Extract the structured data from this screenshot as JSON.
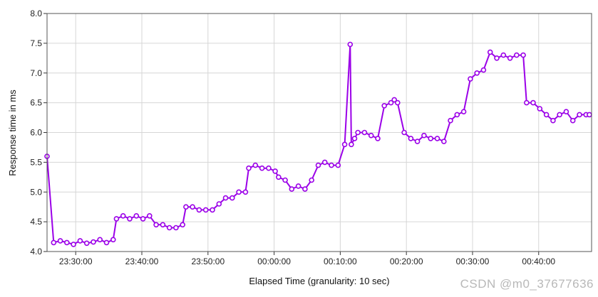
{
  "chart_data": {
    "type": "line",
    "title": "",
    "xlabel": "Elapsed Time (granularity: 10 sec)",
    "ylabel": "Response time in ms",
    "ylim": [
      4.0,
      8.0
    ],
    "yticks": [
      "4.0",
      "4.5",
      "5.0",
      "5.5",
      "6.0",
      "6.5",
      "7.0",
      "7.5",
      "8.0"
    ],
    "xlim": [
      "23:25:40",
      "00:48:00"
    ],
    "xticks": [
      "23:30:00",
      "23:40:00",
      "23:50:00",
      "00:00:00",
      "00:10:00",
      "00:20:00",
      "00:30:00",
      "00:40:00"
    ],
    "grid": true,
    "line_color": "#9b00e8",
    "series": [
      {
        "x": [
          "23:25:40",
          "23:26:40",
          "23:27:40",
          "23:28:40",
          "23:29:40",
          "23:30:40",
          "23:31:40",
          "23:32:40",
          "23:33:40",
          "23:34:40",
          "23:35:40",
          "23:36:10",
          "23:37:10",
          "23:38:10",
          "23:39:10",
          "23:40:10",
          "23:41:10",
          "23:42:10",
          "23:43:10",
          "23:44:10",
          "23:45:10",
          "23:46:10",
          "23:46:40",
          "23:47:40",
          "23:48:40",
          "23:49:40",
          "23:50:40",
          "23:51:40",
          "23:52:40",
          "23:53:40",
          "23:54:40",
          "23:55:40",
          "23:56:10",
          "23:57:10",
          "23:58:10",
          "23:59:10",
          "00:00:10",
          "00:00:40",
          "00:01:40",
          "00:02:40",
          "00:03:40",
          "00:04:40",
          "00:05:40",
          "00:06:40",
          "00:07:40",
          "00:08:40",
          "00:09:40",
          "00:10:40",
          "00:11:30",
          "00:11:40",
          "00:12:10",
          "00:12:40",
          "00:13:40",
          "00:14:40",
          "00:15:40",
          "00:16:40",
          "00:17:40",
          "00:18:10",
          "00:18:40",
          "00:19:40",
          "00:20:40",
          "00:21:40",
          "00:22:40",
          "00:23:40",
          "00:24:40",
          "00:25:40",
          "00:26:40",
          "00:27:40",
          "00:28:40",
          "00:29:40",
          "00:30:40",
          "00:31:40",
          "00:32:40",
          "00:33:40",
          "00:34:40",
          "00:35:40",
          "00:36:40",
          "00:37:40",
          "00:38:10",
          "00:39:10",
          "00:40:10",
          "00:41:10",
          "00:42:10",
          "00:43:10",
          "00:44:10",
          "00:45:10",
          "00:46:10",
          "00:47:10",
          "00:47:40"
        ],
        "y": [
          5.6,
          4.15,
          4.18,
          4.15,
          4.12,
          4.18,
          4.14,
          4.16,
          4.2,
          4.15,
          4.2,
          4.55,
          4.6,
          4.55,
          4.6,
          4.55,
          4.6,
          4.45,
          4.45,
          4.4,
          4.4,
          4.45,
          4.75,
          4.75,
          4.7,
          4.7,
          4.7,
          4.8,
          4.9,
          4.9,
          5.0,
          5.0,
          5.4,
          5.45,
          5.4,
          5.4,
          5.35,
          5.25,
          5.2,
          5.05,
          5.1,
          5.05,
          5.2,
          5.45,
          5.5,
          5.45,
          5.45,
          5.8,
          7.48,
          5.8,
          5.9,
          6.0,
          6.0,
          5.95,
          5.9,
          6.45,
          6.5,
          6.55,
          6.5,
          6.0,
          5.9,
          5.85,
          5.95,
          5.9,
          5.9,
          5.85,
          6.2,
          6.3,
          6.35,
          6.9,
          7.0,
          7.05,
          7.35,
          7.25,
          7.3,
          7.25,
          7.3,
          7.3,
          6.5,
          6.5,
          6.4,
          6.3,
          6.2,
          6.3,
          6.35,
          6.2,
          6.3,
          6.3,
          6.3
        ]
      }
    ]
  },
  "watermark": "CSDN @m0_37677636"
}
